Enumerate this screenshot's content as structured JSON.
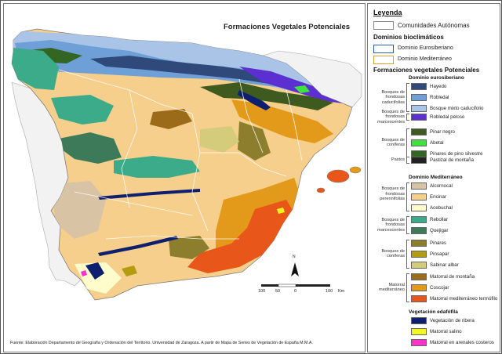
{
  "map": {
    "title": "Formaciones Vegetales Potenciales",
    "source": "Fuente: Elaboración Departamento de Geografía y Ordenación del Territorio. Universidad de Zaragoza. A partir de Mapa de Series de Vegetación de España M.M.A.",
    "north_label": "N",
    "scale": {
      "ticks": [
        "100",
        "50",
        "0",
        "100"
      ],
      "unit": "Km"
    }
  },
  "legend": {
    "title": "Leyenda",
    "ccaa_label": "Comunidades Autónomas",
    "bio_title": "Dominios bioclimáticos",
    "bio": [
      {
        "label": "Dominio Eurosiberiano",
        "color": "#2a5db0"
      },
      {
        "label": "Dominio Mediterráneo",
        "color": "#e0a030"
      }
    ],
    "fv_title": "Formaciones vegetales Potenciales",
    "euro_title": "Dominio eurosiberiano",
    "med_title": "Dominio Mediterráneo",
    "eda_title": "Vegetación edafófila",
    "groups": [
      {
        "label": "Bosques de frondosas caducifolias",
        "items": [
          {
            "label": "Hayedo",
            "color": "#2f4a7a"
          },
          {
            "label": "Robledal",
            "color": "#6e9fd6"
          },
          {
            "label": "Bosque mixto caducifolio",
            "color": "#a9c4e6"
          }
        ]
      },
      {
        "label": "Bosques de frondosas marcescentes",
        "items": [
          {
            "label": "Robledal peloso",
            "color": "#5b2fd0"
          }
        ]
      },
      {
        "label": "Bosques de coníferas",
        "items": [
          {
            "label": "Pinar negro",
            "color": "#3f5a1e"
          },
          {
            "label": "Abetal",
            "color": "#3ee23e"
          },
          {
            "label": "Pinares de pino silvestre",
            "color": "#336622"
          }
        ]
      },
      {
        "label": "Pastos",
        "items": [
          {
            "label": "Pastizal de montaña",
            "color": "#222222"
          }
        ]
      },
      {
        "label": "Bosques de frondosas perennifolias",
        "items": [
          {
            "label": "Alcornocal",
            "color": "#d8c3a5"
          },
          {
            "label": "Encinar",
            "color": "#f7cf8c"
          },
          {
            "label": "Acebuchal",
            "color": "#fffccc"
          }
        ]
      },
      {
        "label": "Bosques de frondosas marcescentes",
        "items": [
          {
            "label": "Rebollar",
            "color": "#3bab8a"
          },
          {
            "label": "Quejigar",
            "color": "#3c7a5a"
          }
        ]
      },
      {
        "label": "Bosques de coníferas",
        "items": [
          {
            "label": "Pinares",
            "color": "#8c7e2c"
          },
          {
            "label": "Pinsapar",
            "color": "#b39c10"
          },
          {
            "label": "Sabinar albar",
            "color": "#d4cc7a"
          }
        ]
      },
      {
        "label": "Matorral mediterráneo",
        "items": [
          {
            "label": "Matorral de montaña",
            "color": "#9b6b1a"
          },
          {
            "label": "Coscojar",
            "color": "#e39a1a"
          },
          {
            "label": "Matorral mediterráneo termófilo",
            "color": "#e8561a"
          }
        ]
      },
      {
        "label": "",
        "items": [
          {
            "label": "Vegetación de ribera",
            "color": "#0d1f6e"
          },
          {
            "label": "Matorral salino",
            "color": "#f5f520"
          },
          {
            "label": "Matorral en arenales costeros",
            "color": "#ff33cc"
          }
        ]
      }
    ]
  }
}
